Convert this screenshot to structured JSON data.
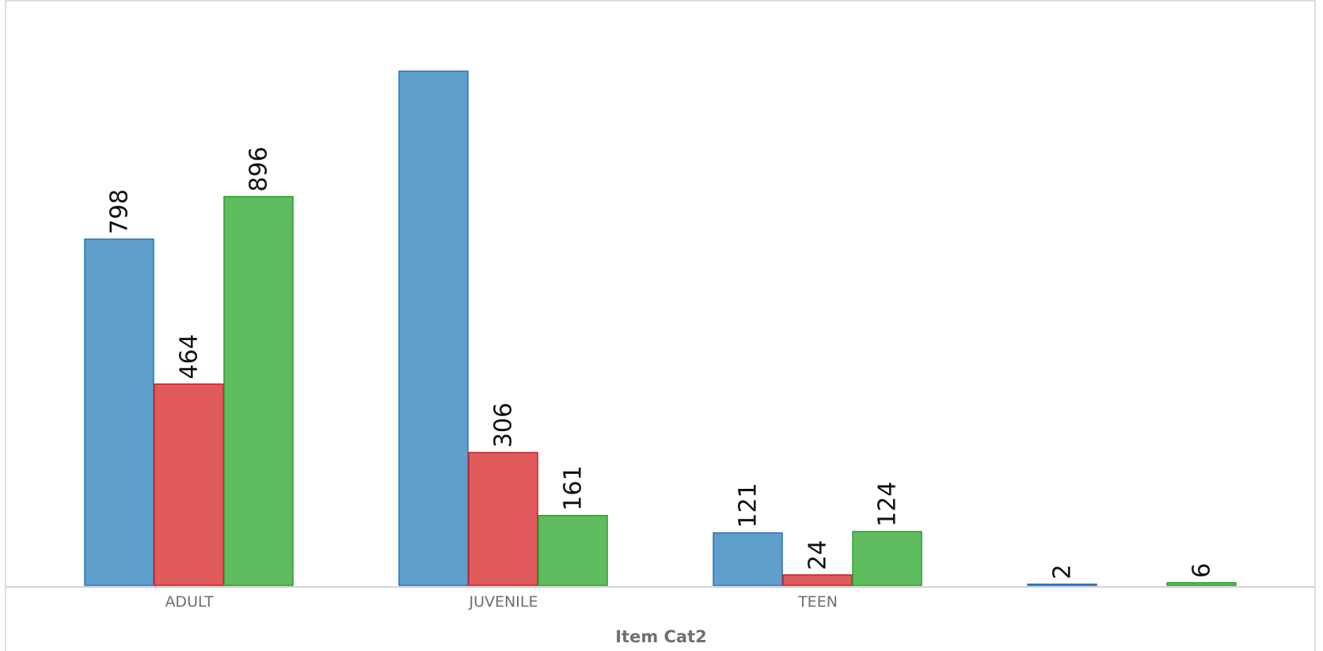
{
  "chart_data": {
    "type": "bar",
    "categories": [
      "ADULT",
      "JUVENILE",
      "TEEN",
      ""
    ],
    "xlabel": "Item Cat2",
    "ylabel": "",
    "ylim": [
      0,
      1300
    ],
    "grid": false,
    "legend": "none",
    "series": [
      {
        "color": "#5f9fcc",
        "stroke": "#2a72b5",
        "values": [
          798,
          1185,
          121,
          2
        ],
        "labels": [
          "798",
          "",
          "121",
          "2"
        ]
      },
      {
        "color": "#e15b5d",
        "stroke": "#c91f26",
        "values": [
          464,
          306,
          24,
          null
        ],
        "labels": [
          "464",
          "306",
          "24",
          ""
        ]
      },
      {
        "color": "#5fbd5f",
        "stroke": "#2b9f2b",
        "values": [
          896,
          161,
          124,
          6
        ],
        "labels": [
          "896",
          "161",
          "124",
          "6"
        ]
      }
    ]
  }
}
